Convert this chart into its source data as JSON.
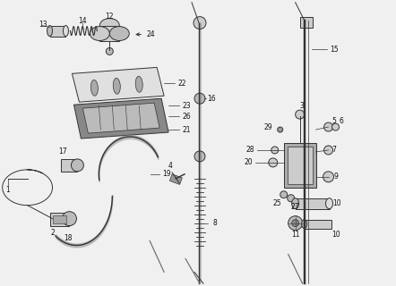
{
  "bg_color": "#f0f0f0",
  "line_color": "#333333",
  "text_color": "#111111",
  "fig_width": 4.42,
  "fig_height": 3.2,
  "dpi": 100
}
